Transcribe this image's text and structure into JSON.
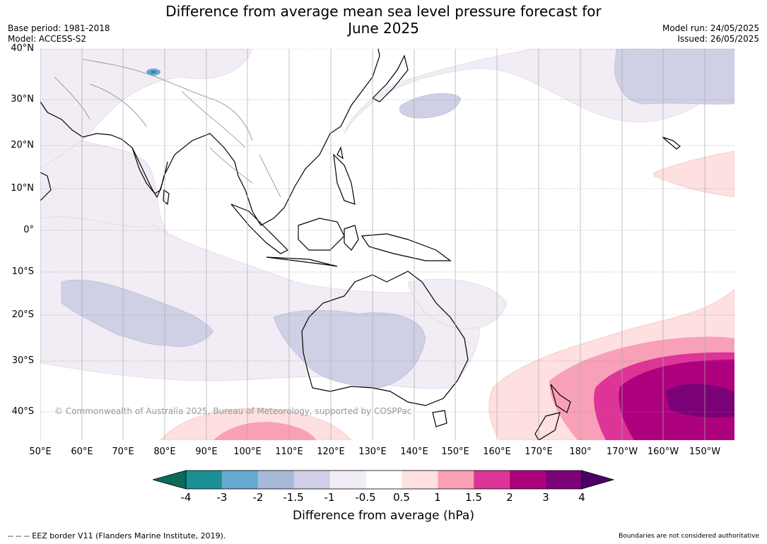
{
  "header": {
    "title_line1": "Difference from average mean sea level pressure forecast for",
    "title_line2": "June 2025",
    "base_period": "Base period: 1981-2018",
    "model": "Model: ACCESS-S2",
    "model_run": "Model run: 24/05/2025",
    "issued": "Issued: 26/05/2025"
  },
  "map": {
    "lat_labels": [
      "40°N",
      "30°N",
      "20°N",
      "10°N",
      "0°",
      "10°S",
      "20°S",
      "30°S",
      "40°S"
    ],
    "lon_labels": [
      "50°E",
      "60°E",
      "70°E",
      "80°E",
      "90°E",
      "100°E",
      "110°E",
      "120°E",
      "130°E",
      "140°E",
      "150°E",
      "160°E",
      "170°E",
      "180°",
      "170°W",
      "160°W",
      "150°W"
    ],
    "copyright": "© Commonwealth of Australia 2025, Bureau of Meteorology, supported by COSPPac"
  },
  "colorbar": {
    "ticks": [
      "-4",
      "-3",
      "-2",
      "-1.5",
      "-1",
      "-0.5",
      "0.5",
      "1",
      "1.5",
      "2",
      "3",
      "4"
    ],
    "colors": [
      "#1a8f94",
      "#66a9d1",
      "#a6b9d6",
      "#cfcfe6",
      "#f2ecf5",
      "#ffffff",
      "#fde0df",
      "#f8a0b8",
      "#dd3497",
      "#ae017e",
      "#7a0177"
    ],
    "low_color": "#0b6b5a",
    "high_color": "#4a0068",
    "label": "Difference from average (hPa)"
  },
  "footer": {
    "eez": "--  --  -- EEZ border V11 (Flanders Marine Institute, 2019).",
    "disclaimer": "Boundaries are not considered authoritative"
  }
}
